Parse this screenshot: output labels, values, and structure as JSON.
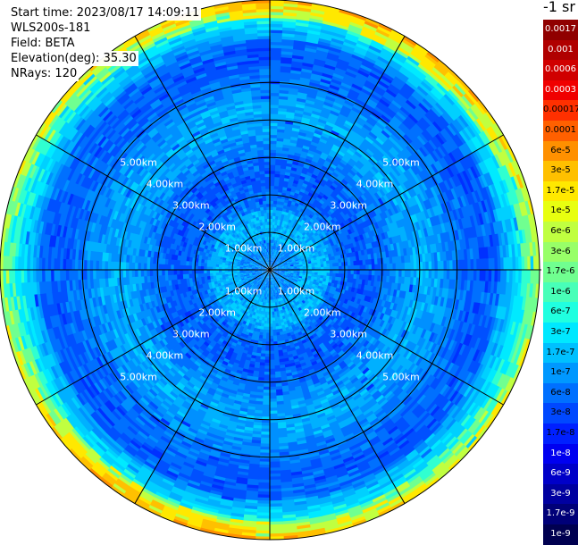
{
  "header": {
    "start_time": "Start time: 2023/08/17 14:09:11",
    "device": "WLS200s-181",
    "field": "Field: BETA",
    "elevation": "Elevation(deg): 35.30",
    "nrays": "NRays: 120"
  },
  "unit_label": "-1 sr",
  "chart_data": {
    "type": "heatmap",
    "projection": "polar",
    "n_rays": 120,
    "range_rings": [
      "1.00km",
      "2.00km",
      "3.00km",
      "4.00km",
      "5.00km"
    ],
    "range_ring_values_km": [
      1,
      2,
      3,
      4,
      5
    ],
    "max_range_km": 7.2,
    "spokes_deg": [
      0,
      30,
      60,
      90,
      120,
      150,
      180,
      210,
      240,
      270,
      300,
      330
    ],
    "colorbar": {
      "ticks": [
        "0.0017",
        "0.001",
        "0.0006",
        "0.0003",
        "0.00017",
        "0.0001",
        "6e-5",
        "3e-5",
        "1.7e-5",
        "1e-5",
        "6e-6",
        "3e-6",
        "1.7e-6",
        "1e-6",
        "6e-7",
        "3e-7",
        "1.7e-7",
        "1e-7",
        "6e-8",
        "3e-8",
        "1.7e-8",
        "1e-8",
        "6e-9",
        "3e-9",
        "1.7e-9",
        "1e-9"
      ],
      "colors": [
        "#900000",
        "#b00000",
        "#d00000",
        "#f00000",
        "#ff3000",
        "#ff6000",
        "#ff9000",
        "#ffc000",
        "#ffe800",
        "#e8ff10",
        "#c0ff40",
        "#98ff68",
        "#70ff90",
        "#48ffb8",
        "#20ffe0",
        "#00e8ff",
        "#00c0ff",
        "#0098ff",
        "#0070ff",
        "#0048ff",
        "#0020ff",
        "#0000f0",
        "#0000c8",
        "#0000a0",
        "#000078",
        "#000050"
      ],
      "white_text_ticks": [
        "0.0017",
        "0.001",
        "0.0006",
        "0.0003",
        "1e-8",
        "6e-9",
        "3e-9",
        "1.7e-9",
        "1e-9"
      ]
    }
  }
}
